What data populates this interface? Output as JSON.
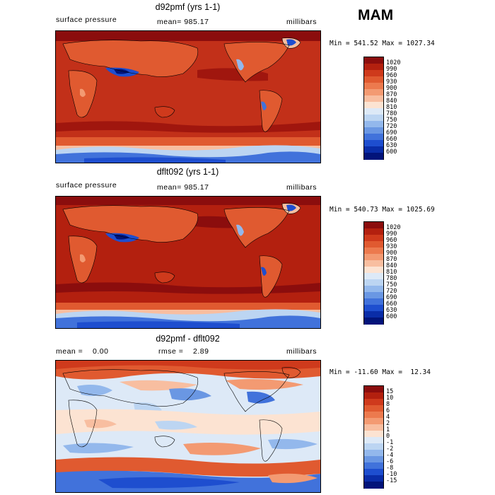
{
  "season": "MAM",
  "panels": [
    {
      "title": "d92pmf (yrs 1-1)",
      "left_label": "surface pressure",
      "center_label": "mean= 985.17",
      "right_label": "millibars",
      "range_label": "Min = 541.52 Max = 1027.34",
      "colorbar_levels": [
        "1020",
        "990",
        "960",
        "930",
        "900",
        "870",
        "840",
        "810",
        "780",
        "750",
        "720",
        "690",
        "660",
        "630",
        "600"
      ],
      "colorbar_colors": [
        "#8b0d0d",
        "#b3200f",
        "#cf3a1c",
        "#e05a30",
        "#ec7a4e",
        "#f39a72",
        "#f8bea0",
        "#fce3d2",
        "#dde9f7",
        "#bcd5f2",
        "#93b8ec",
        "#6a97e3",
        "#4172db",
        "#1e4ecf",
        "#0a2da8",
        "#02147a"
      ]
    },
    {
      "title": "dflt092 (yrs 1-1)",
      "left_label": "surface pressure",
      "center_label": "mean= 985.17",
      "right_label": "millibars",
      "range_label": "Min = 540.73 Max = 1025.69",
      "colorbar_levels": [
        "1020",
        "990",
        "960",
        "930",
        "900",
        "870",
        "840",
        "810",
        "780",
        "750",
        "720",
        "690",
        "660",
        "630",
        "600"
      ],
      "colorbar_colors": [
        "#8b0d0d",
        "#b3200f",
        "#cf3a1c",
        "#e05a30",
        "#ec7a4e",
        "#f39a72",
        "#f8bea0",
        "#fce3d2",
        "#dde9f7",
        "#bcd5f2",
        "#93b8ec",
        "#6a97e3",
        "#4172db",
        "#1e4ecf",
        "#0a2da8",
        "#02147a"
      ]
    },
    {
      "title": "d92pmf - dflt092",
      "left_label": "mean =    0.00",
      "center_label": "rmse =    2.89",
      "right_label": "millibars",
      "range_label": "Min = -11.60 Max =  12.34",
      "colorbar_levels": [
        "15",
        "10",
        "8",
        "6",
        "4",
        "2",
        "1",
        "0",
        "-1",
        "-2",
        "-4",
        "-6",
        "-8",
        "-10",
        "-15"
      ],
      "colorbar_colors": [
        "#8b0d0d",
        "#b3200f",
        "#cf3a1c",
        "#e05a30",
        "#ec7a4e",
        "#f39a72",
        "#f8bea0",
        "#fce3d2",
        "#dde9f7",
        "#bcd5f2",
        "#93b8ec",
        "#6a97e3",
        "#4172db",
        "#1e4ecf",
        "#0a2da8",
        "#02147a"
      ]
    }
  ]
}
